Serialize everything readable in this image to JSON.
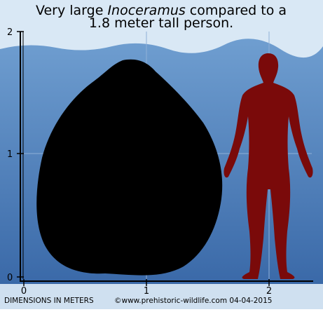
{
  "title": {
    "line1_before": "Very large ",
    "line1_italic": "Inoceramus",
    "line1_after": " compared to a",
    "line2": "1.8 meter tall person."
  },
  "axes": {
    "y_ticks": [
      "2",
      "1",
      "0"
    ],
    "x_ticks": [
      "0",
      "1",
      "2"
    ]
  },
  "footer": {
    "units": "DIMENSIONS IN METERS",
    "credit": "©www.prehistoric-wildlife.com 04-04-2015"
  }
}
